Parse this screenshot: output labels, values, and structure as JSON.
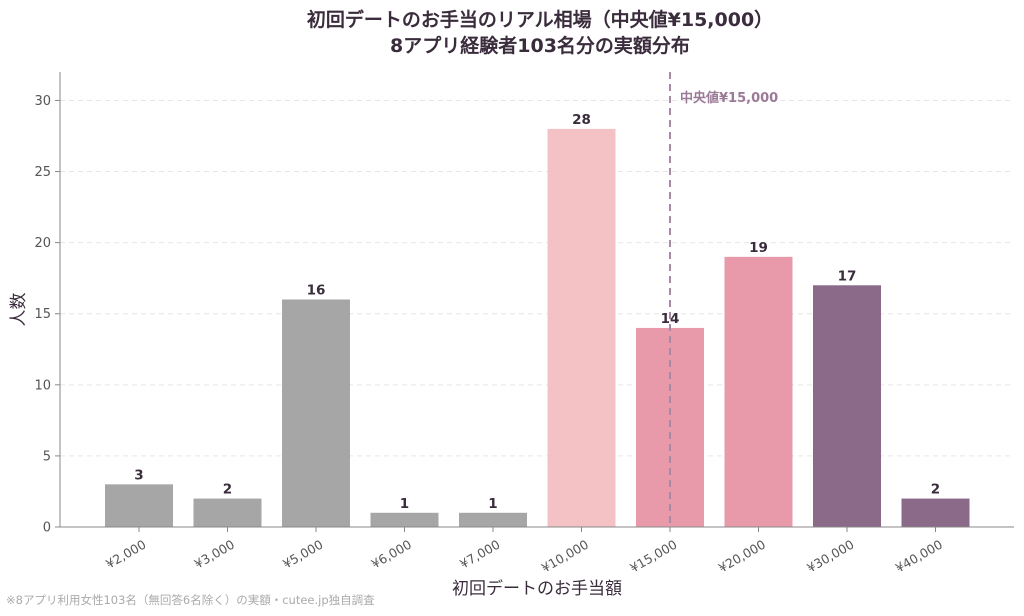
{
  "chart_data": {
    "type": "bar",
    "title": "初回デートのお手当のリアル相場（中央値¥15,000）",
    "subtitle": "8アプリ経験者103名分の実額分布",
    "xlabel": "初回デートのお手当額",
    "ylabel": "人数",
    "ylim": [
      0,
      32
    ],
    "yticks": [
      0,
      5,
      10,
      15,
      20,
      25,
      30
    ],
    "grid": true,
    "categories": [
      "¥2,000",
      "¥3,000",
      "¥5,000",
      "¥6,000",
      "¥7,000",
      "¥10,000",
      "¥15,000",
      "¥20,000",
      "¥30,000",
      "¥40,000"
    ],
    "values": [
      3,
      2,
      16,
      1,
      1,
      28,
      14,
      19,
      17,
      2
    ],
    "colors": [
      "#a6a6a6",
      "#a6a6a6",
      "#a6a6a6",
      "#a6a6a6",
      "#a6a6a6",
      "#f4c2c4",
      "#e89aab",
      "#e89aab",
      "#8a6a88",
      "#8a6a88"
    ],
    "median": {
      "category": "¥15,000",
      "label": "中央値¥15,000",
      "color": "#a88aa6"
    },
    "footnote": "※8アプリ利用女性103名（無回答6名除く）の実額・cutee.jp独自調査"
  }
}
